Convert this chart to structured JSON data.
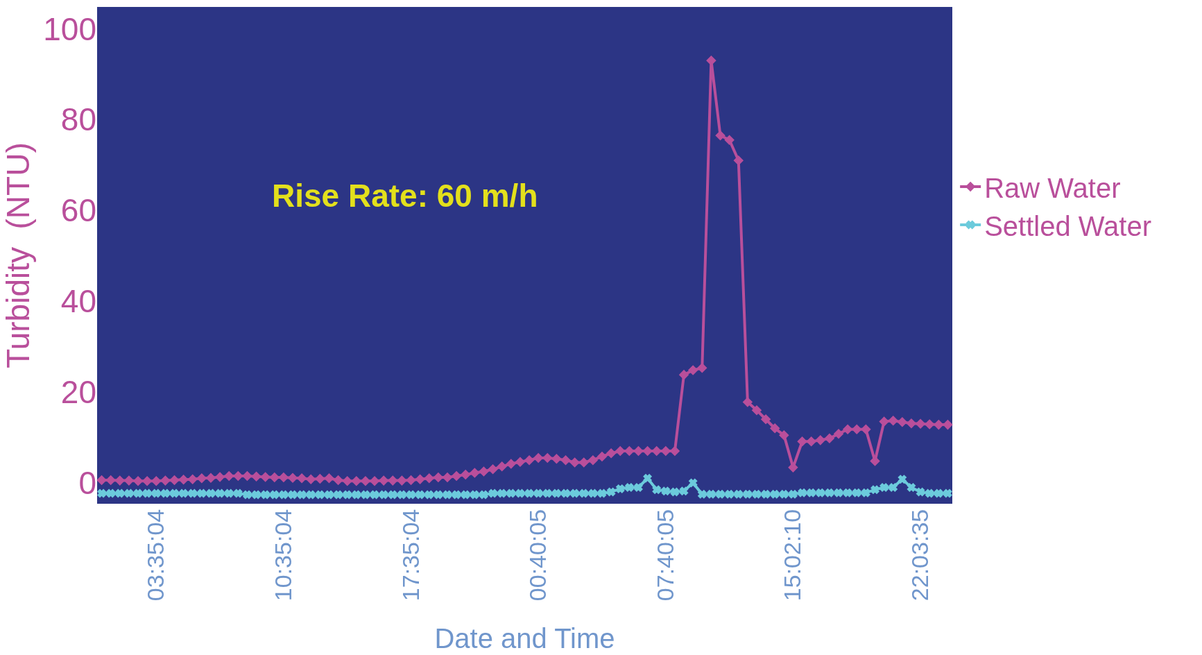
{
  "chart_data": {
    "type": "line",
    "xlabel": "Date and Time",
    "ylabel": "Turbidity  (NTU)",
    "annotations": [
      "Rise Rate: 60 m/h"
    ],
    "categories": [
      null,
      null,
      null,
      null,
      null,
      null,
      "03:35:04",
      null,
      null,
      null,
      null,
      null,
      null,
      null,
      null,
      null,
      null,
      null,
      null,
      null,
      "10:35:04",
      null,
      null,
      null,
      null,
      null,
      null,
      null,
      null,
      null,
      null,
      null,
      null,
      null,
      "17:35:04",
      null,
      null,
      null,
      null,
      null,
      null,
      null,
      null,
      null,
      null,
      null,
      null,
      null,
      "00:40:05",
      null,
      null,
      null,
      null,
      null,
      null,
      null,
      null,
      null,
      null,
      null,
      null,
      null,
      "07:40:05",
      null,
      null,
      null,
      null,
      null,
      null,
      null,
      null,
      null,
      null,
      null,
      null,
      null,
      "15:02:10",
      null,
      null,
      null,
      null,
      null,
      null,
      null,
      null,
      null,
      null,
      null,
      null,
      null,
      "22:03:35",
      null,
      null,
      null
    ],
    "ylim": [
      -4.6,
      104.8
    ],
    "yticks": [
      0,
      20,
      40,
      60,
      80,
      100
    ],
    "grid": false,
    "legend": "right",
    "line_style": "solid",
    "series": [
      {
        "name": "Raw Water",
        "color": "#b94f9b",
        "marker": "diamond",
        "values": [
          0.6,
          0.6,
          0.5,
          0.5,
          0.4,
          0.4,
          0.4,
          0.5,
          0.6,
          0.7,
          0.8,
          1.0,
          1.1,
          1.3,
          1.5,
          1.5,
          1.5,
          1.4,
          1.3,
          1.2,
          1.2,
          1.1,
          1.0,
          0.8,
          0.9,
          1.0,
          0.6,
          0.4,
          0.4,
          0.4,
          0.4,
          0.5,
          0.5,
          0.5,
          0.6,
          0.8,
          1.0,
          1.2,
          1.2,
          1.5,
          1.8,
          2.2,
          2.5,
          3.0,
          3.6,
          4.2,
          4.6,
          5.0,
          5.5,
          5.5,
          5.3,
          5.0,
          4.5,
          4.5,
          5.0,
          5.8,
          6.5,
          7,
          7,
          7,
          7,
          7,
          7,
          7,
          23.8,
          24.8,
          25.3,
          93,
          76.5,
          75.5,
          71,
          17.8,
          16,
          14,
          12,
          10.5,
          3.4,
          9.1,
          9.1,
          9.4,
          9.8,
          10.8,
          11.8,
          11.8,
          11.8,
          4.8,
          13.5,
          13.7,
          13.4,
          13.1,
          13.0,
          12.9,
          12.8,
          12.8
        ]
      },
      {
        "name": "Settled Water",
        "color": "#6ccbdc",
        "marker": "cross",
        "values": [
          -2.3,
          -2.3,
          -2.3,
          -2.3,
          -2.3,
          -2.3,
          -2.3,
          -2.3,
          -2.3,
          -2.3,
          -2.3,
          -2.3,
          -2.3,
          -2.3,
          -2.3,
          -2.3,
          -2.6,
          -2.6,
          -2.6,
          -2.6,
          -2.6,
          -2.6,
          -2.6,
          -2.6,
          -2.6,
          -2.6,
          -2.6,
          -2.6,
          -2.6,
          -2.6,
          -2.6,
          -2.6,
          -2.6,
          -2.6,
          -2.6,
          -2.6,
          -2.6,
          -2.6,
          -2.6,
          -2.6,
          -2.6,
          -2.6,
          -2.6,
          -2.3,
          -2.3,
          -2.3,
          -2.3,
          -2.3,
          -2.3,
          -2.3,
          -2.3,
          -2.3,
          -2.3,
          -2.3,
          -2.3,
          -2.3,
          -2.0,
          -1.3,
          -1.0,
          -1.0,
          1,
          -1.5,
          -1.8,
          -2.0,
          -1.8,
          0,
          -2.5,
          -2.5,
          -2.5,
          -2.5,
          -2.5,
          -2.5,
          -2.5,
          -2.5,
          -2.5,
          -2.5,
          -2.5,
          -2.2,
          -2.2,
          -2.2,
          -2.2,
          -2.2,
          -2.2,
          -2.2,
          -2.2,
          -1.5,
          -1.0,
          -1.0,
          0.8,
          -1.0,
          -2.0,
          -2.3,
          -2.3,
          -2.3
        ]
      }
    ]
  }
}
